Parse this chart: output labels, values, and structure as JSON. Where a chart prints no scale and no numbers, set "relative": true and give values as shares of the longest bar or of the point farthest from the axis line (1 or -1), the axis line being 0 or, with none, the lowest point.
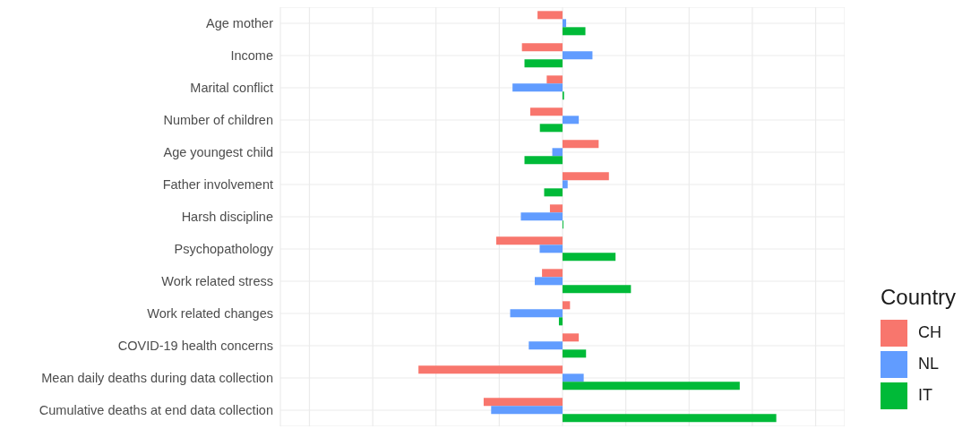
{
  "chart_data": {
    "type": "bar",
    "orientation": "horizontal",
    "relative": true,
    "grid": true,
    "legend": "right",
    "legend_title": "Country",
    "categories": [
      "Age mother",
      "Income",
      "Marital conflict",
      "Number of children",
      "Age youngest child",
      "Father involvement",
      "Harsh discipline",
      "Psychopathology",
      "Work related stress",
      "Work related changes",
      "COVID-19 health concerns",
      "Mean daily deaths during data collection",
      "Cumulative deaths at end data collection"
    ],
    "series": [
      {
        "name": "CH",
        "color": "#f8766d",
        "values": [
          -0.117,
          -0.19,
          -0.074,
          -0.151,
          0.169,
          0.217,
          -0.059,
          -0.31,
          -0.096,
          0.035,
          0.076,
          -0.674,
          -0.369
        ]
      },
      {
        "name": "NL",
        "color": "#619cff",
        "values": [
          0.017,
          0.14,
          -0.234,
          0.076,
          -0.048,
          0.024,
          -0.195,
          -0.107,
          -0.13,
          -0.245,
          -0.158,
          0.099,
          -0.334
        ]
      },
      {
        "name": "IT",
        "color": "#00ba38",
        "values": [
          0.107,
          -0.178,
          0.007,
          -0.106,
          -0.178,
          -0.086,
          0.004,
          0.248,
          0.32,
          -0.017,
          0.11,
          0.829,
          1
        ]
      }
    ]
  }
}
